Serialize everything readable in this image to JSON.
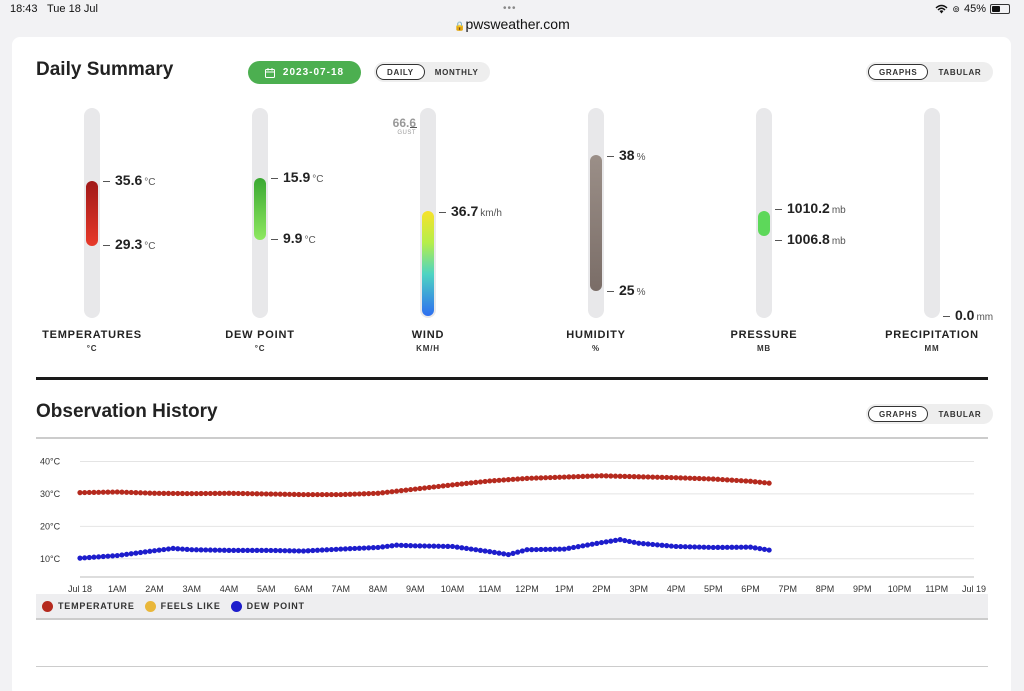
{
  "status_bar": {
    "time": "18:43",
    "date": "Tue 18 Jul",
    "url": "pwsweather.com",
    "battery": "45%"
  },
  "daily_summary": {
    "title": "Daily Summary",
    "date": "2023-07-18",
    "period_tabs": [
      "DAILY",
      "MONTHLY"
    ],
    "active_period": "DAILY",
    "view_tabs": [
      "GRAPHS",
      "TABULAR"
    ],
    "active_view": "GRAPHS",
    "gauges": {
      "temperature": {
        "label": "TEMPERATURES",
        "sub": "°C",
        "high": "35.6",
        "low": "29.3",
        "unit": "°C",
        "color_top": "#a01818",
        "color_bottom": "#e83a2a"
      },
      "dew_point": {
        "label": "DEW POINT",
        "sub": "°C",
        "high": "15.9",
        "low": "9.9",
        "unit": "°C",
        "color_top": "#3aa832",
        "color_bottom": "#8ee860"
      },
      "wind": {
        "label": "WIND",
        "sub": "KM/H",
        "value": "36.7",
        "unit": "km/h",
        "gust": "66.6",
        "gust_label": "GUST"
      },
      "humidity": {
        "label": "HUMIDITY",
        "sub": "%",
        "high": "38",
        "low": "25",
        "unit": "%",
        "color": "#8a7d76"
      },
      "pressure": {
        "label": "PRESSURE",
        "sub": "MB",
        "high": "1010.2",
        "low": "1006.8",
        "unit": "mb",
        "color": "#5dd85a"
      },
      "precipitation": {
        "label": "PRECIPITATION",
        "sub": "MM",
        "value": "0.0",
        "unit": "mm"
      }
    }
  },
  "observation_history": {
    "title": "Observation History",
    "view_tabs": [
      "GRAPHS",
      "TABULAR"
    ],
    "active_view": "GRAPHS",
    "legend": [
      {
        "label": "TEMPERATURE",
        "color": "#b52a1e"
      },
      {
        "label": "FEELS LIKE",
        "color": "#e9b73a"
      },
      {
        "label": "DEW POINT",
        "color": "#1d1dcc"
      }
    ]
  },
  "chart_data": {
    "type": "line",
    "y_ticks": [
      "40°C",
      "30°C",
      "20°C",
      "10°C"
    ],
    "y_tick_values": [
      40,
      30,
      20,
      10
    ],
    "ylim": [
      5,
      42
    ],
    "x_tick_labels": [
      "Jul 18",
      "1AM",
      "2AM",
      "3AM",
      "4AM",
      "5AM",
      "6AM",
      "7AM",
      "8AM",
      "9AM",
      "10AM",
      "11AM",
      "12PM",
      "1PM",
      "2PM",
      "3PM",
      "4PM",
      "5PM",
      "6PM",
      "7PM",
      "8PM",
      "9PM",
      "10PM",
      "11PM",
      "Jul 19"
    ],
    "xlim_hours": [
      0,
      24
    ],
    "grid": true,
    "series": [
      {
        "name": "TEMPERATURE",
        "color": "#b52a1e",
        "hours": [
          0,
          1,
          2,
          3,
          4,
          5,
          6,
          7,
          8,
          9,
          10,
          11,
          12,
          13,
          14,
          15,
          16,
          17,
          18,
          18.6
        ],
        "values": [
          30.4,
          30.6,
          30.2,
          30.1,
          30.2,
          30.0,
          29.8,
          29.8,
          30.2,
          31.5,
          32.8,
          34.0,
          34.8,
          35.2,
          35.6,
          35.3,
          35.0,
          34.6,
          33.9,
          33.2
        ]
      },
      {
        "name": "DEW POINT",
        "color": "#1d1dcc",
        "hours": [
          0,
          1,
          2,
          2.5,
          3,
          4,
          5,
          6,
          7,
          8,
          8.5,
          9,
          10,
          11,
          11.5,
          12,
          13,
          14,
          14.5,
          15,
          16,
          17,
          18,
          18.6
        ],
        "values": [
          10.2,
          11.0,
          12.5,
          13.2,
          12.8,
          12.6,
          12.6,
          12.4,
          13.0,
          13.5,
          14.2,
          14.0,
          13.8,
          12.2,
          11.3,
          12.8,
          13.0,
          15.0,
          15.9,
          14.8,
          13.8,
          13.5,
          13.6,
          12.5
        ]
      }
    ]
  }
}
